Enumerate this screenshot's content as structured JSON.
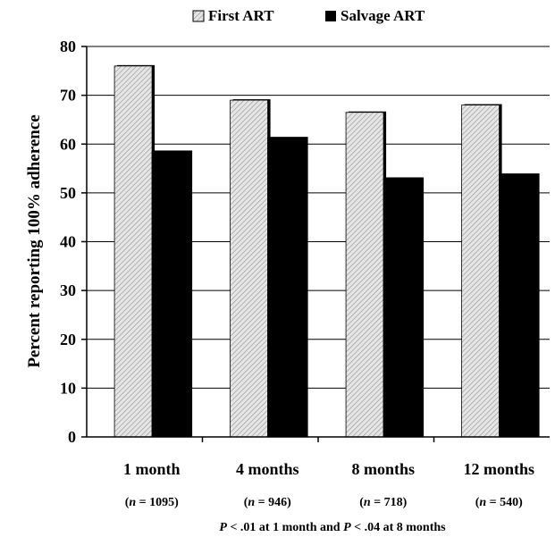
{
  "chart_data": {
    "type": "bar",
    "categories": [
      "1 month",
      "4 months",
      "8 months",
      "12 months"
    ],
    "sample_sizes": [
      "1095",
      "946",
      "718",
      "540"
    ],
    "series": [
      {
        "name": "First ART",
        "values": [
          76,
          69,
          66.5,
          68
        ]
      },
      {
        "name": "Salvage ART",
        "values": [
          58.5,
          61.3,
          53,
          53.8
        ]
      }
    ],
    "ylabel": "Percent reporting 100% adherence",
    "xlabel": "",
    "ylim": [
      0,
      80
    ],
    "yticks": [
      0,
      10,
      20,
      30,
      40,
      50,
      60,
      70,
      80
    ],
    "grid": true,
    "legend_position": "top-center",
    "footnote": {
      "p1": "P",
      "text1": " < .01 at 1 month and ",
      "p2": "P",
      "text2": " < .04 at 8 months"
    },
    "colors": {
      "first_art": "#d6d6d6",
      "salvage_art": "#000000"
    }
  }
}
